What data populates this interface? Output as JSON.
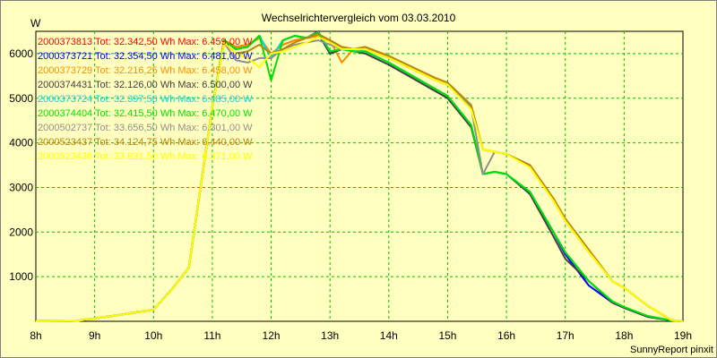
{
  "chart_data": {
    "type": "line",
    "title": "Wechselrichtervergleich vom 03.03.2010",
    "ylabel": "W",
    "xlabel": "",
    "ylim": [
      0,
      6500
    ],
    "xlim": [
      8,
      19
    ],
    "grid": true,
    "legend_position": "top-left",
    "footer": "SunnyReport pinxit",
    "x_ticks": [
      {
        "value": 8,
        "label": "8h"
      },
      {
        "value": 9,
        "label": "9h"
      },
      {
        "value": 10,
        "label": "10h"
      },
      {
        "value": 11,
        "label": "11h"
      },
      {
        "value": 12,
        "label": "12h"
      },
      {
        "value": 13,
        "label": "13h"
      },
      {
        "value": 14,
        "label": "14h"
      },
      {
        "value": 15,
        "label": "15h"
      },
      {
        "value": 16,
        "label": "16h"
      },
      {
        "value": 17,
        "label": "17h"
      },
      {
        "value": 18,
        "label": "18h"
      },
      {
        "value": 19,
        "label": "19h"
      }
    ],
    "y_ticks": [
      {
        "value": 1000,
        "label": "1000"
      },
      {
        "value": 2000,
        "label": "2000"
      },
      {
        "value": 3000,
        "label": "3000"
      },
      {
        "value": 4000,
        "label": "4000"
      },
      {
        "value": 5000,
        "label": "5000"
      },
      {
        "value": 6000,
        "label": "6000"
      }
    ],
    "series": [
      {
        "name": "2000373813",
        "legend": "2000373813 Tot: 32.342,50 Wh Max: 6.459,00 W",
        "color": "#ff0000",
        "x": [
          8,
          8.7,
          9.3,
          10,
          10.3,
          10.6,
          11,
          11.2,
          11.4,
          11.6,
          11.8,
          12,
          12.2,
          12.4,
          12.6,
          12.8,
          13,
          13.2,
          13.4,
          13.6,
          14,
          14.4,
          14.8,
          15,
          15.4,
          15.6,
          15.8,
          16,
          16.4,
          16.8,
          17,
          17.4,
          17.8,
          18,
          18.4,
          18.8,
          19
        ],
        "y": [
          0,
          10,
          120,
          260,
          700,
          1200,
          4800,
          6300,
          6150,
          6200,
          6350,
          6000,
          6200,
          6300,
          6350,
          6400,
          6300,
          6150,
          6100,
          6100,
          5900,
          5650,
          5400,
          5300,
          4800,
          3850,
          3800,
          3750,
          3500,
          2750,
          2300,
          1600,
          900,
          750,
          350,
          30,
          0
        ]
      },
      {
        "name": "2000373721",
        "legend": "2000373721 Tot: 32.354,50 Wh Max: 6.481,00 W",
        "color": "#0000ff",
        "x": [
          8,
          8.7,
          9.3,
          10,
          10.3,
          10.6,
          11,
          11.2,
          11.4,
          11.6,
          11.8,
          12,
          12.2,
          12.4,
          12.6,
          12.8,
          13,
          13.2,
          13.4,
          13.6,
          14,
          14.4,
          14.8,
          15,
          15.4,
          15.6,
          15.8,
          16,
          16.4,
          16.8,
          17,
          17.4,
          17.8,
          18,
          18.4,
          18.8,
          19
        ],
        "y": [
          0,
          10,
          120,
          260,
          700,
          1200,
          4800,
          6300,
          6100,
          6150,
          6400,
          5900,
          6300,
          6400,
          6350,
          6450,
          6000,
          6100,
          6050,
          6050,
          5800,
          5500,
          5200,
          5050,
          4400,
          3300,
          3350,
          3300,
          2900,
          2000,
          1500,
          800,
          420,
          300,
          100,
          20,
          0
        ]
      },
      {
        "name": "2000373729",
        "legend": "2000373729 Tot: 32.216,25 Wh Max: 6.458,00 W",
        "color": "#ff8c00",
        "x": [
          8,
          8.7,
          9.3,
          10,
          10.3,
          10.6,
          11,
          11.2,
          11.4,
          11.6,
          11.8,
          12,
          12.2,
          12.4,
          12.6,
          12.8,
          13,
          13.2,
          13.4,
          13.6,
          14,
          14.4,
          14.8,
          15,
          15.4,
          15.6,
          15.8,
          16,
          16.4,
          16.8,
          17,
          17.4,
          17.8,
          18,
          18.4,
          18.8,
          19
        ],
        "y": [
          0,
          10,
          120,
          260,
          700,
          1200,
          4800,
          6300,
          6150,
          6200,
          6350,
          6000,
          6200,
          6300,
          6350,
          6400,
          6300,
          5800,
          6100,
          6150,
          5900,
          5650,
          5400,
          5300,
          4800,
          3850,
          3800,
          3750,
          3500,
          2700,
          2250,
          1550,
          900,
          750,
          350,
          30,
          0
        ]
      },
      {
        "name": "2000374431",
        "legend": "2000374431 Tot: 32.126,00 Wh Max: 6.500,00 W",
        "color": "#404040",
        "x": [
          8,
          8.7,
          9.3,
          10,
          10.3,
          10.6,
          11,
          11.2,
          11.4,
          11.6,
          11.8,
          12,
          12.2,
          12.4,
          12.6,
          12.8,
          13,
          13.2,
          13.4,
          13.6,
          14,
          14.4,
          14.8,
          15,
          15.4,
          15.6,
          15.8,
          16,
          16.4,
          16.8,
          17,
          17.4,
          17.8,
          18,
          18.4,
          18.8,
          19
        ],
        "y": [
          0,
          10,
          120,
          260,
          700,
          1200,
          4800,
          6300,
          6100,
          6150,
          6400,
          5900,
          6300,
          6400,
          6350,
          6500,
          6000,
          6100,
          6050,
          6000,
          5750,
          5450,
          5150,
          5000,
          4350,
          3300,
          3350,
          3300,
          2850,
          1900,
          1400,
          900,
          420,
          300,
          100,
          20,
          0
        ]
      },
      {
        "name": "2000373724",
        "legend": "2000373724 Tot: 32.397,50 Wh Max: 6.485,00 W",
        "color": "#00dddd",
        "x": [
          8,
          8.7,
          9.3,
          10,
          10.3,
          10.6,
          11,
          11.2,
          11.4,
          11.6,
          11.8,
          12,
          12.2,
          12.4,
          12.6,
          12.8,
          13,
          13.2,
          13.4,
          13.6,
          14,
          14.4,
          14.8,
          15,
          15.4,
          15.6,
          15.8,
          16,
          16.4,
          16.8,
          17,
          17.4,
          17.8,
          18,
          18.4,
          18.8,
          19
        ],
        "y": [
          0,
          10,
          120,
          260,
          700,
          1200,
          4800,
          6300,
          6100,
          6150,
          6400,
          5900,
          6300,
          6400,
          6350,
          6480,
          6050,
          6100,
          6050,
          6050,
          5800,
          5500,
          5200,
          5050,
          4400,
          3300,
          3350,
          3300,
          2900,
          2000,
          1550,
          900,
          450,
          320,
          120,
          20,
          0
        ]
      },
      {
        "name": "2000374404",
        "legend": "2000374404 Tot: 32.415,50 Wh Max: 6.470,00 W",
        "color": "#00e000",
        "x": [
          8,
          8.7,
          9.3,
          10,
          10.3,
          10.6,
          11,
          11.2,
          11.4,
          11.6,
          11.8,
          12,
          12.2,
          12.4,
          12.6,
          12.8,
          13,
          13.2,
          13.4,
          13.6,
          14,
          14.4,
          14.8,
          15,
          15.4,
          15.6,
          15.8,
          16,
          16.4,
          16.8,
          17,
          17.4,
          17.8,
          18,
          18.4,
          18.8,
          19
        ],
        "y": [
          0,
          10,
          120,
          260,
          700,
          1200,
          4800,
          6300,
          6100,
          6150,
          6400,
          5400,
          6300,
          6400,
          6350,
          6470,
          6050,
          6100,
          6050,
          6050,
          5800,
          5500,
          5200,
          5050,
          4400,
          3300,
          3350,
          3300,
          2900,
          2000,
          1550,
          900,
          450,
          320,
          120,
          20,
          0
        ]
      },
      {
        "name": "2000502737",
        "legend": "2000502737 Tot: 33.656,50 Wh Max: 6.301,00 W",
        "color": "#909090",
        "x": [
          8,
          8.7,
          9.3,
          10,
          10.3,
          10.6,
          11,
          11.2,
          11.4,
          11.6,
          11.8,
          12,
          12.2,
          12.4,
          12.6,
          12.8,
          13,
          13.2,
          13.4,
          13.6,
          14,
          14.4,
          14.8,
          15,
          15.4,
          15.6,
          15.8,
          16,
          16.4,
          16.8,
          17,
          17.4,
          17.8,
          18,
          18.4,
          18.8,
          19
        ],
        "y": [
          0,
          10,
          120,
          260,
          700,
          1200,
          4800,
          6250,
          5850,
          5800,
          5900,
          5900,
          6100,
          6200,
          6250,
          6300,
          6200,
          6100,
          6100,
          6100,
          5900,
          5650,
          5400,
          5300,
          4800,
          3300,
          3800,
          3750,
          3500,
          2700,
          2250,
          1550,
          900,
          750,
          350,
          30,
          0
        ]
      },
      {
        "name": "2000523437",
        "legend": "2000523437 Tot: 34.124,75 Wh Max: 6.440,00 W",
        "color": "#b8860b",
        "x": [
          8,
          8.7,
          9.3,
          10,
          10.3,
          10.6,
          11,
          11.2,
          11.4,
          11.6,
          11.8,
          12,
          12.2,
          12.4,
          12.6,
          12.8,
          13,
          13.2,
          13.4,
          13.6,
          14,
          14.4,
          14.8,
          15,
          15.4,
          15.6,
          15.8,
          16,
          16.4,
          16.8,
          17,
          17.4,
          17.8,
          18,
          18.4,
          18.8,
          19
        ],
        "y": [
          0,
          10,
          120,
          260,
          700,
          1200,
          4800,
          6250,
          6000,
          6050,
          6200,
          6000,
          6100,
          6250,
          6350,
          6440,
          6300,
          6150,
          6100,
          6150,
          5950,
          5700,
          5450,
          5350,
          4850,
          3850,
          3800,
          3750,
          3500,
          2750,
          2300,
          1600,
          900,
          750,
          350,
          30,
          0
        ]
      },
      {
        "name": "2000523438",
        "legend": "2000523438 Tot: 33.831,50 Wh Max: 6.371,00 W",
        "color": "#ffff00",
        "x": [
          8,
          8.7,
          9.3,
          10,
          10.3,
          10.6,
          11,
          11.2,
          11.4,
          11.6,
          11.8,
          12,
          12.2,
          12.4,
          12.6,
          12.8,
          13,
          13.2,
          13.4,
          13.6,
          14,
          14.4,
          14.8,
          15,
          15.4,
          15.6,
          15.8,
          16,
          16.4,
          16.8,
          17,
          17.4,
          17.8,
          18,
          18.4,
          18.8,
          19
        ],
        "y": [
          0,
          10,
          120,
          260,
          700,
          1200,
          4800,
          6250,
          6000,
          5900,
          5700,
          6000,
          6050,
          6150,
          6250,
          6371,
          6250,
          6100,
          6100,
          6100,
          5900,
          5650,
          5400,
          5300,
          4750,
          3850,
          3800,
          3750,
          3450,
          2700,
          2250,
          1550,
          900,
          750,
          350,
          30,
          0
        ]
      }
    ]
  }
}
